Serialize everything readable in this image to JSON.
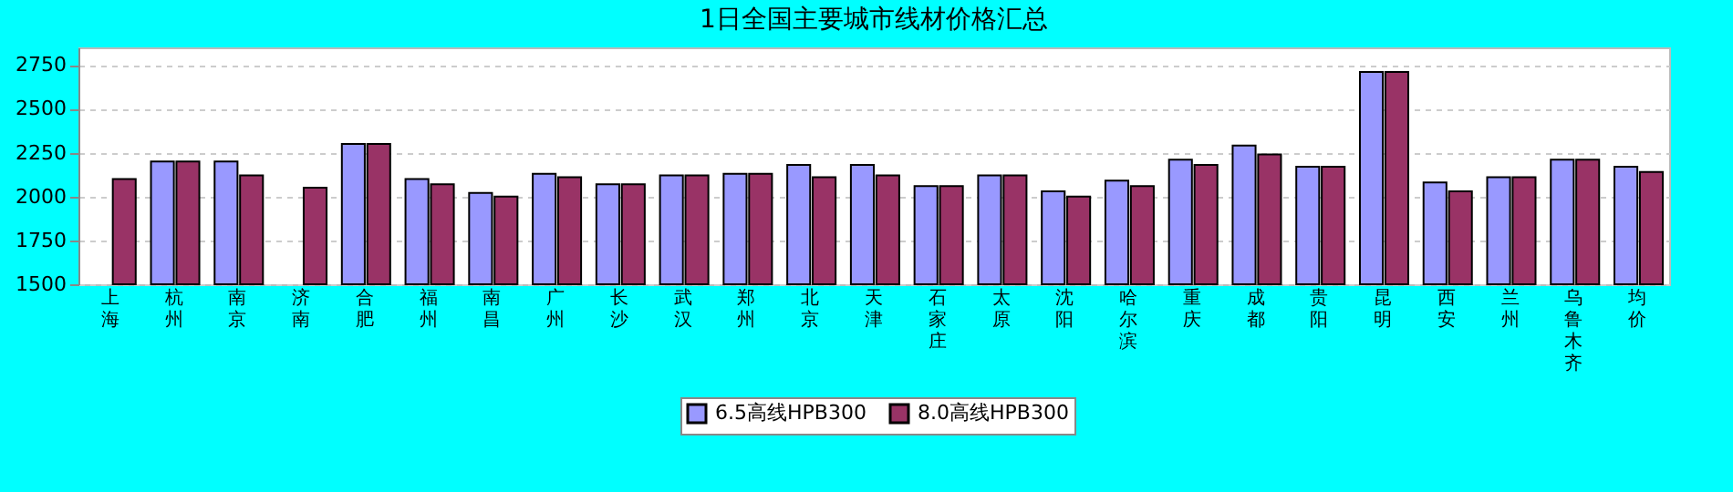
{
  "chart_data": {
    "type": "bar",
    "title": "1日全国主要城市线材价格汇总",
    "categories": [
      "上海",
      "杭州",
      "南京",
      "济南",
      "合肥",
      "福州",
      "南昌",
      "广州",
      "长沙",
      "武汉",
      "郑州",
      "北京",
      "天津",
      "石家庄",
      "太原",
      "沈阳",
      "哈尔滨",
      "重庆",
      "成都",
      "贵阳",
      "昆明",
      "西安",
      "兰州",
      "乌鲁木齐",
      "均价"
    ],
    "series": [
      {
        "name": "6.5高线HPB300",
        "color": "#9999ff",
        "values": [
          null,
          2200,
          2200,
          null,
          2300,
          2100,
          2020,
          2130,
          2070,
          2120,
          2130,
          2180,
          2180,
          2060,
          2120,
          2030,
          2090,
          2210,
          2290,
          2170,
          2710,
          2080,
          2110,
          2210,
          2170
        ]
      },
      {
        "name": "8.0高线HPB300",
        "color": "#993366",
        "values": [
          2100,
          2200,
          2120,
          2050,
          2300,
          2070,
          2000,
          2110,
          2070,
          2120,
          2130,
          2110,
          2120,
          2060,
          2120,
          2000,
          2060,
          2180,
          2240,
          2170,
          2710,
          2030,
          2110,
          2210,
          2140
        ]
      }
    ],
    "ylim": [
      1500,
      2850
    ],
    "yticks": [
      1500,
      1750,
      2000,
      2250,
      2500,
      2750
    ],
    "grid": "y",
    "legend": "bottom"
  }
}
